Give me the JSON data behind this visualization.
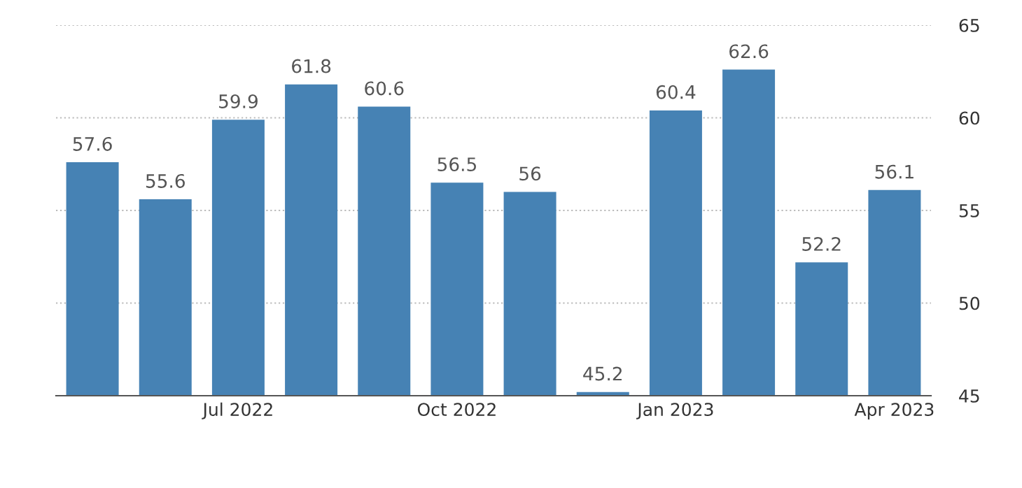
{
  "chart_data": {
    "type": "bar",
    "categories": [
      null,
      null,
      "Jul 2022",
      null,
      null,
      "Oct 2022",
      null,
      null,
      "Jan 2023",
      null,
      null,
      "Apr 2023"
    ],
    "values": [
      57.6,
      55.6,
      59.9,
      61.8,
      60.6,
      56.5,
      56,
      45.2,
      60.4,
      62.6,
      52.2,
      56.1
    ],
    "color": "#4682b4",
    "ylim": [
      45,
      65
    ],
    "yticks": [
      45,
      50,
      55,
      60,
      65
    ],
    "grid": "y",
    "data_labels": true
  }
}
